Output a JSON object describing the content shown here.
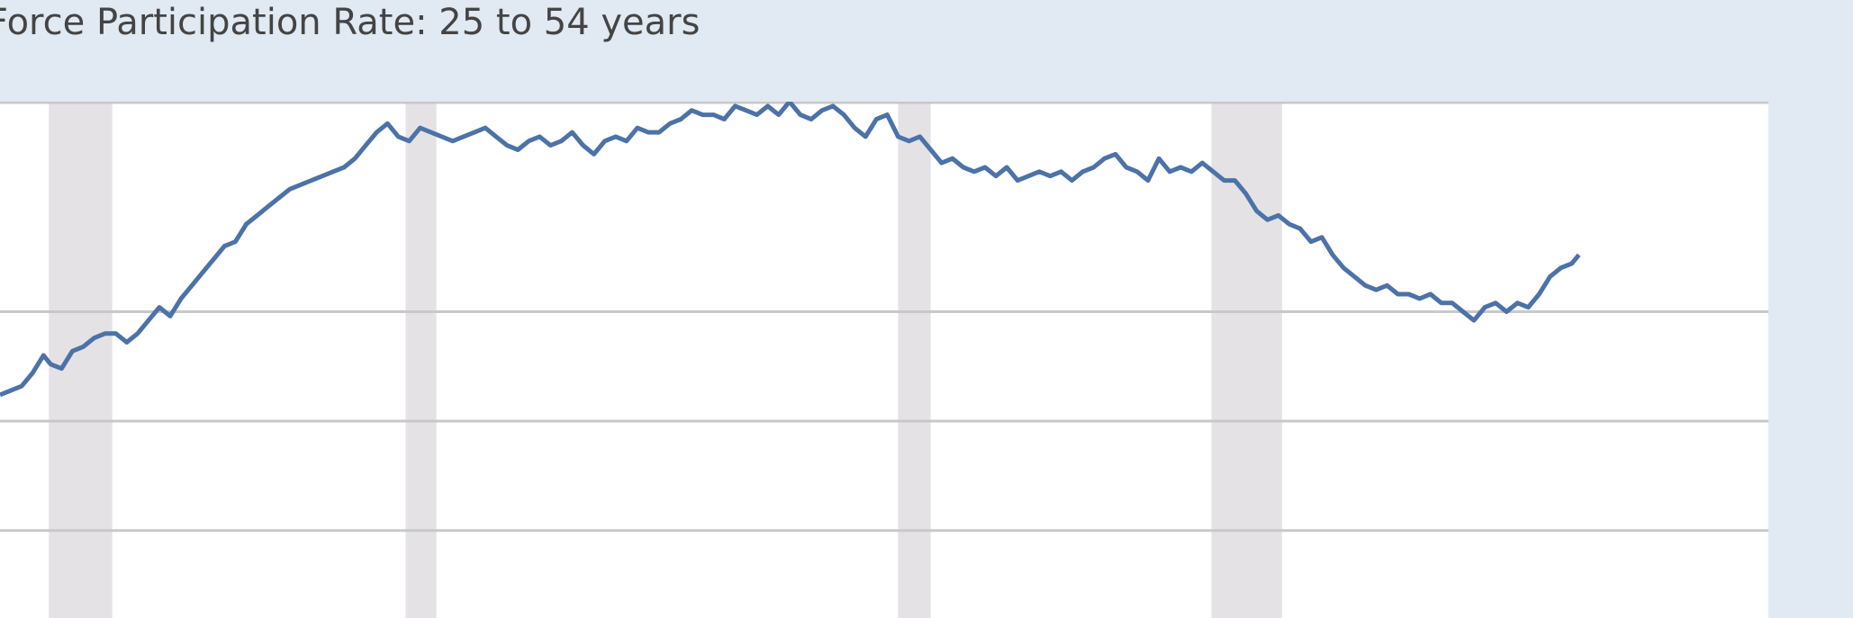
{
  "title": "Force Participation Rate: 25 to 54 years",
  "colors": {
    "page_background": "#e1e9f3",
    "plot_background": "#ffffff",
    "series_line": "#4c72a8",
    "recession_band": "#e5e2e6",
    "grid_line": "#c8c8c8"
  },
  "chart_data": {
    "type": "line",
    "title": "Force Participation Rate: 25 to 54 years",
    "xlabel": "",
    "ylabel": "",
    "grid": true,
    "legend": "none",
    "xlim": [
      1976.0,
      2024.83
    ],
    "ylim": [
      74.0,
      85.8
    ],
    "recessions": [
      {
        "start": 1977.35,
        "end": 1979.1
      },
      {
        "start": 1987.2,
        "end": 1988.05
      },
      {
        "start": 2000.8,
        "end": 2001.7
      },
      {
        "start": 2009.45,
        "end": 2011.4
      }
    ],
    "series": [
      {
        "values": [
          [
            1976.0,
            79.1
          ],
          [
            1976.3,
            79.2
          ],
          [
            1976.6,
            79.3
          ],
          [
            1976.9,
            79.6
          ],
          [
            1977.2,
            80.0
          ],
          [
            1977.4,
            79.8
          ],
          [
            1977.7,
            79.7
          ],
          [
            1978.0,
            80.1
          ],
          [
            1978.3,
            80.2
          ],
          [
            1978.6,
            80.4
          ],
          [
            1978.9,
            80.5
          ],
          [
            1979.2,
            80.5
          ],
          [
            1979.5,
            80.3
          ],
          [
            1979.8,
            80.5
          ],
          [
            1980.1,
            80.8
          ],
          [
            1980.4,
            81.1
          ],
          [
            1980.7,
            80.9
          ],
          [
            1981.0,
            81.3
          ],
          [
            1981.3,
            81.6
          ],
          [
            1981.6,
            81.9
          ],
          [
            1981.9,
            82.2
          ],
          [
            1982.2,
            82.5
          ],
          [
            1982.5,
            82.6
          ],
          [
            1982.8,
            83.0
          ],
          [
            1983.1,
            83.2
          ],
          [
            1983.4,
            83.4
          ],
          [
            1983.7,
            83.6
          ],
          [
            1984.0,
            83.8
          ],
          [
            1984.3,
            83.9
          ],
          [
            1984.6,
            84.0
          ],
          [
            1984.9,
            84.1
          ],
          [
            1985.2,
            84.2
          ],
          [
            1985.5,
            84.3
          ],
          [
            1985.8,
            84.5
          ],
          [
            1986.1,
            84.8
          ],
          [
            1986.4,
            85.1
          ],
          [
            1986.7,
            85.3
          ],
          [
            1987.0,
            85.0
          ],
          [
            1987.3,
            84.9
          ],
          [
            1987.6,
            85.2
          ],
          [
            1987.9,
            85.1
          ],
          [
            1988.2,
            85.0
          ],
          [
            1988.5,
            84.9
          ],
          [
            1988.8,
            85.0
          ],
          [
            1989.1,
            85.1
          ],
          [
            1989.4,
            85.2
          ],
          [
            1989.7,
            85.0
          ],
          [
            1990.0,
            84.8
          ],
          [
            1990.3,
            84.7
          ],
          [
            1990.6,
            84.9
          ],
          [
            1990.9,
            85.0
          ],
          [
            1991.2,
            84.8
          ],
          [
            1991.5,
            84.9
          ],
          [
            1991.8,
            85.1
          ],
          [
            1992.1,
            84.8
          ],
          [
            1992.4,
            84.6
          ],
          [
            1992.7,
            84.9
          ],
          [
            1993.0,
            85.0
          ],
          [
            1993.3,
            84.9
          ],
          [
            1993.6,
            85.2
          ],
          [
            1993.9,
            85.1
          ],
          [
            1994.2,
            85.1
          ],
          [
            1994.5,
            85.3
          ],
          [
            1994.8,
            85.4
          ],
          [
            1995.1,
            85.6
          ],
          [
            1995.4,
            85.5
          ],
          [
            1995.7,
            85.5
          ],
          [
            1996.0,
            85.4
          ],
          [
            1996.3,
            85.7
          ],
          [
            1996.6,
            85.6
          ],
          [
            1996.9,
            85.5
          ],
          [
            1997.2,
            85.7
          ],
          [
            1997.5,
            85.5
          ],
          [
            1997.8,
            85.8
          ],
          [
            1998.1,
            85.5
          ],
          [
            1998.4,
            85.4
          ],
          [
            1998.7,
            85.6
          ],
          [
            1999.0,
            85.7
          ],
          [
            1999.3,
            85.5
          ],
          [
            1999.6,
            85.2
          ],
          [
            1999.9,
            85.0
          ],
          [
            2000.2,
            85.4
          ],
          [
            2000.5,
            85.5
          ],
          [
            2000.8,
            85.0
          ],
          [
            2001.1,
            84.9
          ],
          [
            2001.4,
            85.0
          ],
          [
            2001.7,
            84.7
          ],
          [
            2002.0,
            84.4
          ],
          [
            2002.3,
            84.5
          ],
          [
            2002.6,
            84.3
          ],
          [
            2002.9,
            84.2
          ],
          [
            2003.2,
            84.3
          ],
          [
            2003.5,
            84.1
          ],
          [
            2003.8,
            84.3
          ],
          [
            2004.1,
            84.0
          ],
          [
            2004.4,
            84.1
          ],
          [
            2004.7,
            84.2
          ],
          [
            2005.0,
            84.1
          ],
          [
            2005.3,
            84.2
          ],
          [
            2005.6,
            84.0
          ],
          [
            2005.9,
            84.2
          ],
          [
            2006.2,
            84.3
          ],
          [
            2006.5,
            84.5
          ],
          [
            2006.8,
            84.6
          ],
          [
            2007.1,
            84.3
          ],
          [
            2007.4,
            84.2
          ],
          [
            2007.7,
            84.0
          ],
          [
            2008.0,
            84.5
          ],
          [
            2008.3,
            84.2
          ],
          [
            2008.6,
            84.3
          ],
          [
            2008.9,
            84.2
          ],
          [
            2009.2,
            84.4
          ],
          [
            2009.5,
            84.2
          ],
          [
            2009.8,
            84.0
          ],
          [
            2010.1,
            84.0
          ],
          [
            2010.4,
            83.7
          ],
          [
            2010.7,
            83.3
          ],
          [
            2011.0,
            83.1
          ],
          [
            2011.3,
            83.2
          ],
          [
            2011.6,
            83.0
          ],
          [
            2011.9,
            82.9
          ],
          [
            2012.2,
            82.6
          ],
          [
            2012.5,
            82.7
          ],
          [
            2012.8,
            82.3
          ],
          [
            2013.1,
            82.0
          ],
          [
            2013.4,
            81.8
          ],
          [
            2013.7,
            81.6
          ],
          [
            2014.0,
            81.5
          ],
          [
            2014.3,
            81.6
          ],
          [
            2014.6,
            81.4
          ],
          [
            2014.9,
            81.4
          ],
          [
            2015.2,
            81.3
          ],
          [
            2015.5,
            81.4
          ],
          [
            2015.8,
            81.2
          ],
          [
            2016.1,
            81.2
          ],
          [
            2016.4,
            81.0
          ],
          [
            2016.7,
            80.8
          ],
          [
            2017.0,
            81.1
          ],
          [
            2017.3,
            81.2
          ],
          [
            2017.6,
            81.0
          ],
          [
            2017.9,
            81.2
          ],
          [
            2018.2,
            81.1
          ],
          [
            2018.5,
            81.4
          ],
          [
            2018.8,
            81.8
          ],
          [
            2019.1,
            82.0
          ],
          [
            2019.4,
            82.1
          ],
          [
            2019.6,
            82.3
          ]
        ]
      }
    ],
    "y_gridlines": [
      81.0,
      78.5,
      76.0
    ]
  }
}
